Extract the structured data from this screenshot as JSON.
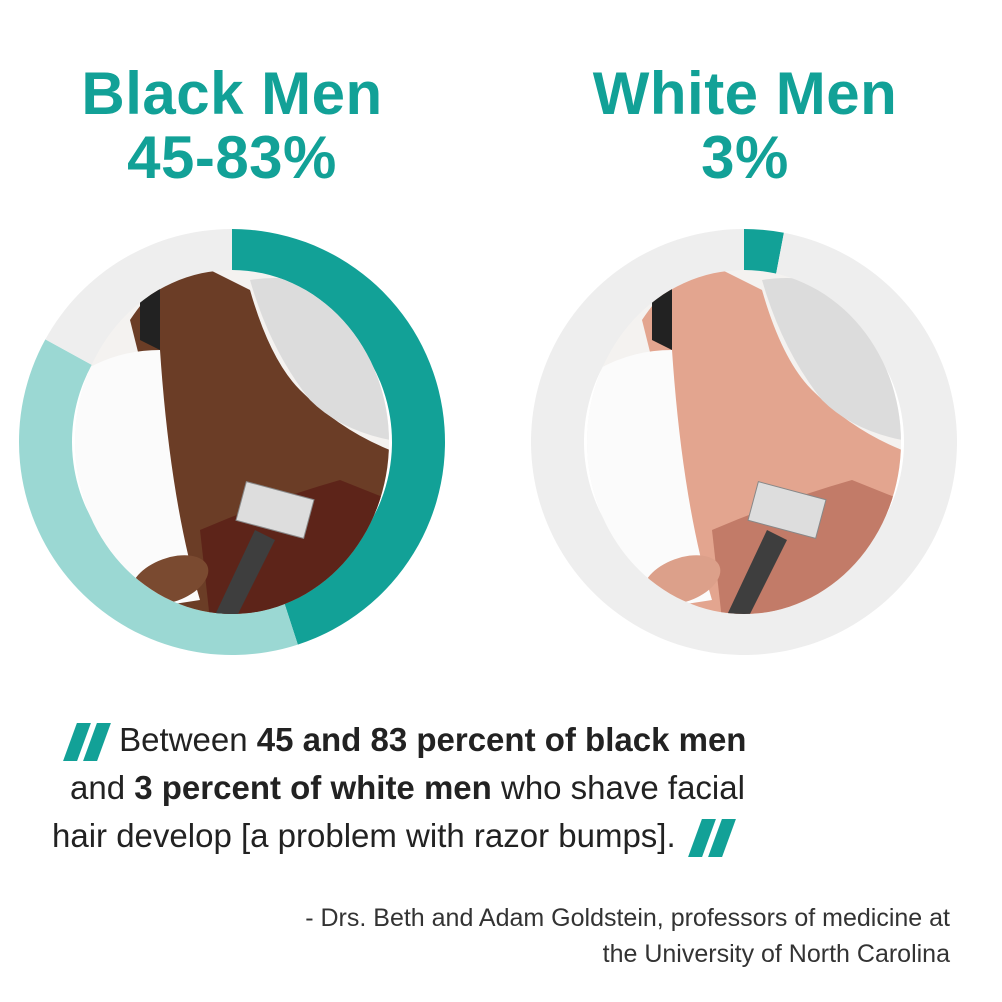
{
  "chart_data": [
    {
      "type": "pie",
      "title": "Black Men",
      "value_label": "45-83%",
      "segments": [
        {
          "label": "45%",
          "value": 45,
          "color": "#12a197"
        },
        {
          "label": "45-83%",
          "value": 38,
          "color": "#9bd8d3"
        },
        {
          "label": "rest",
          "value": 17,
          "color": "#eeeeee"
        }
      ]
    },
    {
      "type": "pie",
      "title": "White Men",
      "value_label": "3%",
      "segments": [
        {
          "label": "3%",
          "value": 3,
          "color": "#12a197"
        },
        {
          "label": "rest",
          "value": 97,
          "color": "#eeeeee"
        }
      ]
    }
  ],
  "quote": {
    "l1a": "Between ",
    "l1b": "45 and 83 percent of black men",
    "l2a": "and ",
    "l2b": "3 percent of white men",
    "l2c": " who shave facial",
    "l3": "hair develop [a problem with razor bumps]."
  },
  "attribution": {
    "l1": "- Drs. Beth and Adam Goldstein, professors of medicine at",
    "l2": "the University of North Carolina"
  },
  "colors": {
    "accent": "#12a197",
    "light": "#9bd8d3",
    "track": "#eeeeee"
  }
}
